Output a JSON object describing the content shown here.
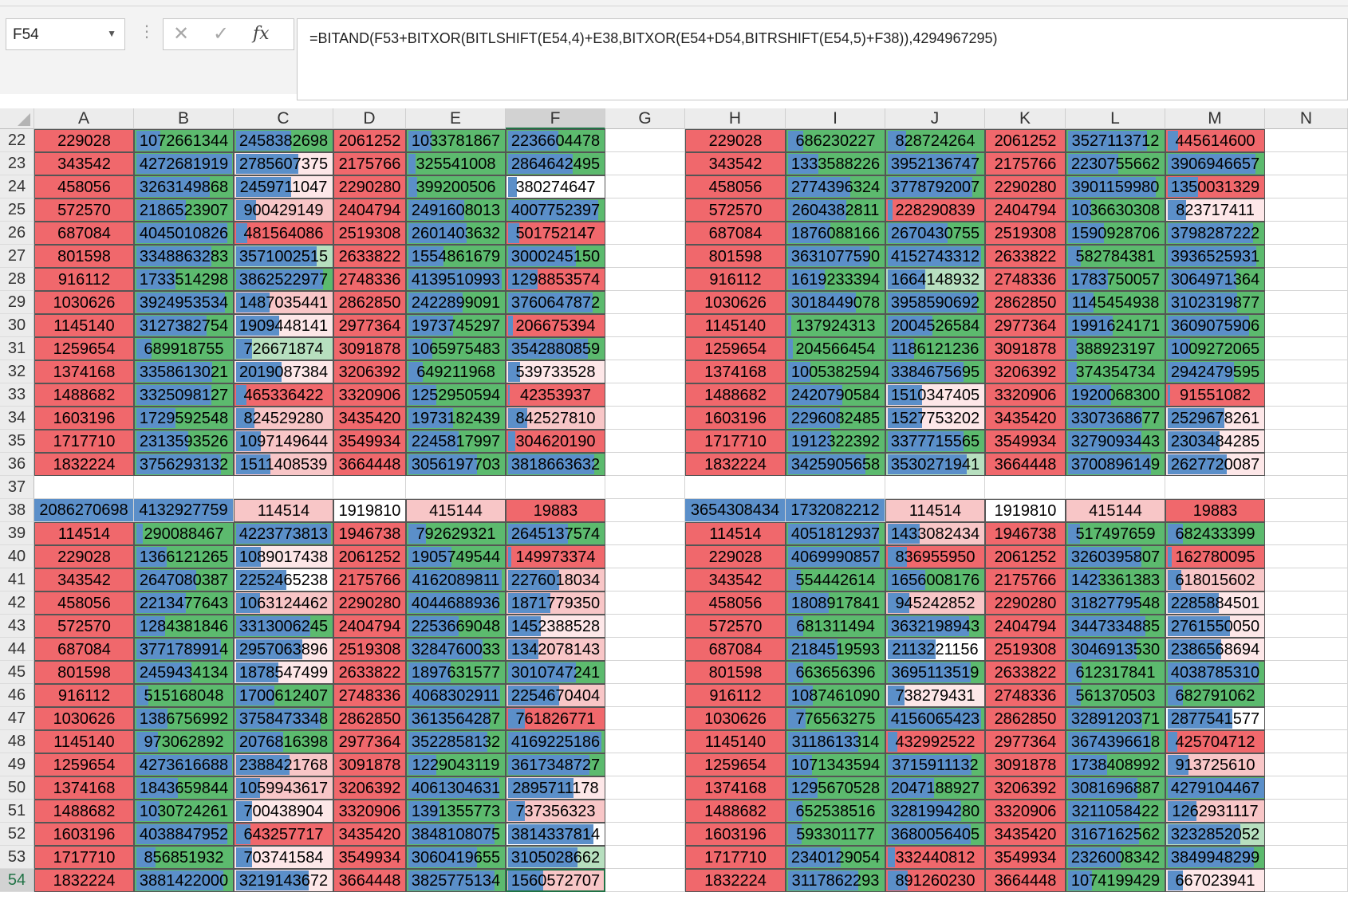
{
  "namebox": {
    "value": "F54"
  },
  "formula": {
    "text": "=BITAND(F53+BITXOR(BITLSHIFT(E54,4)+E38,BITXOR(E54+D54,BITRSHIFT(E54,5)+F38)),4294967295)"
  },
  "colors": {
    "red": "#f0686c",
    "pink": "#f8c6c7",
    "lightpink": "#fde7e8",
    "white": "#ffffff",
    "green": "#5cba6e",
    "lightgreen": "#b7dfbf",
    "blue": "#5b8fc9"
  },
  "columns": [
    "A",
    "B",
    "C",
    "D",
    "E",
    "F",
    "G",
    "H",
    "I",
    "J",
    "K",
    "L",
    "M",
    "N"
  ],
  "rows": [
    {
      "num": "22",
      "left": [
        "229028",
        "1072661344",
        "2458382698",
        "2061252",
        "1033781867",
        "2236604478"
      ],
      "right": [
        "229028",
        "686230227",
        "828724264",
        "2061252",
        "3527113712",
        "445614600"
      ]
    },
    {
      "num": "23",
      "left": [
        "343542",
        "4272681919",
        "2785607375",
        "2175766",
        "325541008",
        "2864642495"
      ],
      "right": [
        "343542",
        "1333588226",
        "3952136747",
        "2175766",
        "2230755662",
        "3906946657"
      ]
    },
    {
      "num": "24",
      "left": [
        "458056",
        "3263149868",
        "2459711047",
        "2290280",
        "399200506",
        "380274647"
      ],
      "right": [
        "458056",
        "2774396324",
        "3778792007",
        "2290280",
        "3901159980",
        "1350031329"
      ]
    },
    {
      "num": "25",
      "left": [
        "572570",
        "2186523907",
        "900429149",
        "2404794",
        "2491608013",
        "4007752397"
      ],
      "right": [
        "572570",
        "2604382811",
        "228290839",
        "2404794",
        "1036630308",
        "823717411"
      ]
    },
    {
      "num": "26",
      "left": [
        "687084",
        "4045010826",
        "481564086",
        "2519308",
        "2601403632",
        "501752147"
      ],
      "right": [
        "687084",
        "1876088166",
        "2670430755",
        "2519308",
        "1590928706",
        "3798287222"
      ]
    },
    {
      "num": "27",
      "left": [
        "801598",
        "3348863283",
        "3571002515",
        "2633822",
        "1554861679",
        "3000245150"
      ],
      "right": [
        "801598",
        "3631077590",
        "4152743312",
        "2633822",
        "582784381",
        "3936525931"
      ]
    },
    {
      "num": "28",
      "left": [
        "916112",
        "1733514298",
        "3862522977",
        "2748336",
        "4139510993",
        "1298853574"
      ],
      "right": [
        "916112",
        "1619233394",
        "1664148932",
        "2748336",
        "1783750057",
        "3064971364"
      ]
    },
    {
      "num": "29",
      "left": [
        "1030626",
        "3924953534",
        "1487035441",
        "2862850",
        "2422899091",
        "3760647872"
      ],
      "right": [
        "1030626",
        "3018449078",
        "3958590692",
        "2862850",
        "1145454938",
        "3102319877"
      ]
    },
    {
      "num": "30",
      "left": [
        "1145140",
        "3127382754",
        "1909448141",
        "2977364",
        "1973745297",
        "206675394"
      ],
      "right": [
        "1145140",
        "137924313",
        "2004526584",
        "2977364",
        "1991624171",
        "3609075906"
      ]
    },
    {
      "num": "31",
      "left": [
        "1259654",
        "689918755",
        "726671874",
        "3091878",
        "1065975483",
        "3542880859"
      ],
      "right": [
        "1259654",
        "204566454",
        "1186121236",
        "3091878",
        "388923197",
        "1009272065"
      ]
    },
    {
      "num": "32",
      "left": [
        "1374168",
        "3358613021",
        "2019087384",
        "3206392",
        "649211968",
        "539733528"
      ],
      "right": [
        "1374168",
        "1005382594",
        "3384675695",
        "3206392",
        "374354734",
        "2942479595"
      ]
    },
    {
      "num": "33",
      "left": [
        "1488682",
        "3325098127",
        "465336422",
        "3320906",
        "1252950594",
        "42353937"
      ],
      "right": [
        "1488682",
        "2420790584",
        "1510347405",
        "3320906",
        "1920068300",
        "91551082"
      ]
    },
    {
      "num": "34",
      "left": [
        "1603196",
        "1729592548",
        "824529280",
        "3435420",
        "1973182439",
        "842527810"
      ],
      "right": [
        "1603196",
        "2296082485",
        "1527753202",
        "3435420",
        "3307368677",
        "2529678261"
      ]
    },
    {
      "num": "35",
      "left": [
        "1717710",
        "2313593526",
        "1097149644",
        "3549934",
        "2245817997",
        "304620190"
      ],
      "right": [
        "1717710",
        "1912322392",
        "3377715565",
        "3549934",
        "3279093443",
        "2303484285"
      ]
    },
    {
      "num": "36",
      "left": [
        "1832224",
        "3756293132",
        "1511408539",
        "3664448",
        "3056197703",
        "3818663632"
      ],
      "right": [
        "1832224",
        "3425905658",
        "3530271941",
        "3664448",
        "3700896149",
        "2627720087"
      ]
    },
    {
      "num": "37",
      "left": [
        "",
        "",
        "",
        "",
        "",
        ""
      ],
      "right": [
        "",
        "",
        "",
        "",
        "",
        ""
      ]
    },
    {
      "num": "38",
      "left": [
        "2086270698",
        "4132927759",
        "114514",
        "1919810",
        "415144",
        "19883"
      ],
      "right": [
        "3654308434",
        "1732082212",
        "114514",
        "1919810",
        "415144",
        "19883"
      ]
    },
    {
      "num": "39",
      "left": [
        "114514",
        "290088467",
        "4223773813",
        "1946738",
        "792629321",
        "2645137574"
      ],
      "right": [
        "114514",
        "4051812937",
        "1433082434",
        "1946738",
        "517497659",
        "682433399"
      ]
    },
    {
      "num": "40",
      "left": [
        "229028",
        "1366121265",
        "1089017438",
        "2061252",
        "1905749544",
        "149973374"
      ],
      "right": [
        "229028",
        "4069990857",
        "836955950",
        "2061252",
        "3260395807",
        "162780095"
      ]
    },
    {
      "num": "41",
      "left": [
        "343542",
        "2647080387",
        "2252465238",
        "2175766",
        "4162089811",
        "2276018034"
      ],
      "right": [
        "343542",
        "554442614",
        "1656008176",
        "2175766",
        "1423361383",
        "618015602"
      ]
    },
    {
      "num": "42",
      "left": [
        "458056",
        "2213477643",
        "1063124462",
        "2290280",
        "4044688936",
        "1871779350"
      ],
      "right": [
        "458056",
        "1808917841",
        "945242852",
        "2290280",
        "3182779548",
        "2285884501"
      ]
    },
    {
      "num": "43",
      "left": [
        "572570",
        "1284381846",
        "3313006245",
        "2404794",
        "2253669048",
        "1452388528"
      ],
      "right": [
        "572570",
        "681311494",
        "3632198943",
        "2404794",
        "3447334885",
        "2761550050"
      ]
    },
    {
      "num": "44",
      "left": [
        "687084",
        "3771789914",
        "2957063896",
        "2519308",
        "3284760033",
        "1342078143"
      ],
      "right": [
        "687084",
        "2184519593",
        "2113221156",
        "2519308",
        "3046913530",
        "2386568694"
      ]
    },
    {
      "num": "45",
      "left": [
        "801598",
        "2459434134",
        "1878547499",
        "2633822",
        "1897631577",
        "3010747241"
      ],
      "right": [
        "801598",
        "663656396",
        "3695113519",
        "2633822",
        "612317841",
        "4038785310"
      ]
    },
    {
      "num": "46",
      "left": [
        "916112",
        "515168048",
        "1700612407",
        "2748336",
        "4068302911",
        "2254670404"
      ],
      "right": [
        "916112",
        "1087461090",
        "738279431",
        "2748336",
        "561370503",
        "682791062"
      ]
    },
    {
      "num": "47",
      "left": [
        "1030626",
        "1386756992",
        "3758473348",
        "2862850",
        "3613564287",
        "761826771"
      ],
      "right": [
        "1030626",
        "776563275",
        "4156065423",
        "2862850",
        "3289120371",
        "2877541577"
      ]
    },
    {
      "num": "48",
      "left": [
        "1145140",
        "973062892",
        "2076816398",
        "2977364",
        "3522858132",
        "4169225186"
      ],
      "right": [
        "1145140",
        "3118613314",
        "432992522",
        "2977364",
        "3674396618",
        "425704712"
      ]
    },
    {
      "num": "49",
      "left": [
        "1259654",
        "4273616688",
        "2388421768",
        "3091878",
        "1229043119",
        "3617348727"
      ],
      "right": [
        "1259654",
        "1071343594",
        "3715911132",
        "3091878",
        "1738408992",
        "913725610"
      ]
    },
    {
      "num": "50",
      "left": [
        "1374168",
        "1843659844",
        "1059943617",
        "3206392",
        "4061304631",
        "2895711178"
      ],
      "right": [
        "1374168",
        "1295670528",
        "2047188927",
        "3206392",
        "3081696887",
        "4279104467"
      ]
    },
    {
      "num": "51",
      "left": [
        "1488682",
        "1030724261",
        "700438904",
        "3320906",
        "1391355773",
        "737356323"
      ],
      "right": [
        "1488682",
        "652538516",
        "3281994280",
        "3320906",
        "3211058422",
        "1262931117"
      ]
    },
    {
      "num": "52",
      "left": [
        "1603196",
        "4038847952",
        "643257717",
        "3435420",
        "3848108075",
        "3814337814"
      ],
      "right": [
        "1603196",
        "593301177",
        "3680056405",
        "3435420",
        "3167162562",
        "3232852052"
      ]
    },
    {
      "num": "53",
      "left": [
        "1717710",
        "856851932",
        "703741584",
        "3549934",
        "3060419655",
        "3105028662"
      ],
      "right": [
        "1717710",
        "2340129054",
        "332440812",
        "3549934",
        "2326008342",
        "3849948299"
      ]
    },
    {
      "num": "54",
      "left": [
        "1832224",
        "3881422000",
        "3219143672",
        "3664448",
        "3825775134",
        "1560572707"
      ],
      "right": [
        "1832224",
        "3117862293",
        "891260230",
        "3664448",
        "1074199429",
        "667023941"
      ]
    }
  ]
}
